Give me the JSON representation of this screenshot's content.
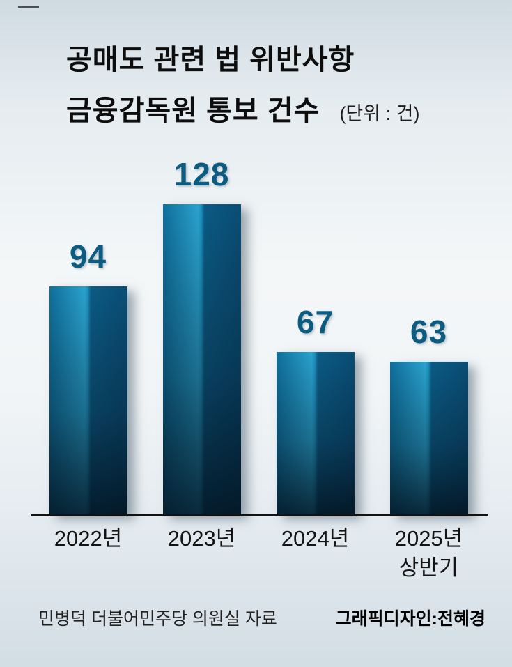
{
  "title": {
    "line1": "공매도 관련 법 위반사항",
    "line2": "금융감독원 통보 건수",
    "unit": "(단위 : 건)"
  },
  "chart_data": {
    "type": "bar",
    "title": "공매도 관련 법 위반사항 금융감독원 통보 건수",
    "unit_label": "(단위 : 건)",
    "categories": [
      "2022년",
      "2023년",
      "2024년",
      "2025년 상반기"
    ],
    "values": [
      94,
      128,
      67,
      63
    ],
    "ylim": [
      0,
      128
    ],
    "grid": false,
    "legend": "none",
    "bar_color_light": "#2aa2ce",
    "bar_color_dark": "#0a2438",
    "value_label_color": "#0b5c80",
    "bars": [
      {
        "value": "94",
        "label": "2022년",
        "label2": ""
      },
      {
        "value": "128",
        "label": "2023년",
        "label2": ""
      },
      {
        "value": "67",
        "label": "2024년",
        "label2": ""
      },
      {
        "value": "63",
        "label": "2025년",
        "label2": "상반기"
      }
    ]
  },
  "footer": {
    "source": "민병덕 더불어민주당 의원실 자료",
    "credit": "그래픽디자인:전혜경"
  }
}
